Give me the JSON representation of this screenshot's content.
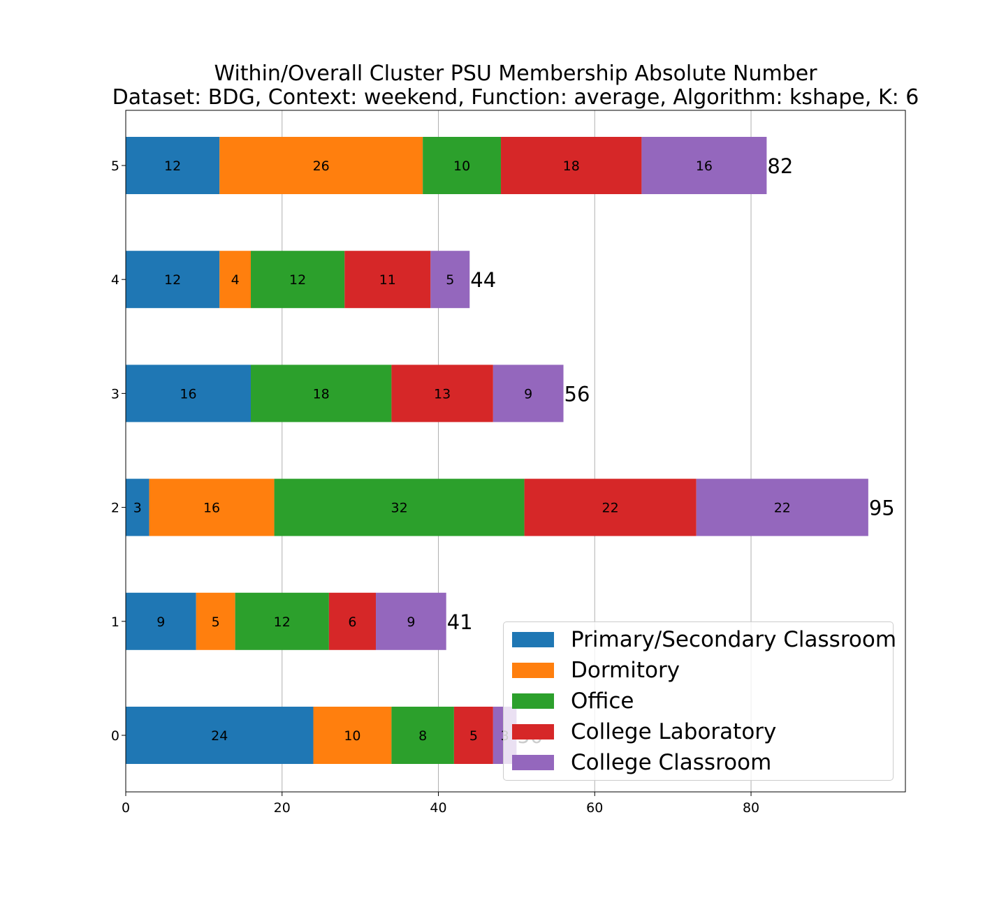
{
  "chart_data": {
    "type": "bar",
    "orientation": "horizontal",
    "stacked": true,
    "title": "Within/Overall Cluster PSU Membership Absolute Number",
    "subtitle": "Dataset: BDG, Context: weekend, Function: average, Algorithm: kshape, K: 6",
    "xlabel": "",
    "ylabel": "",
    "xlim": [
      0,
      100
    ],
    "x_ticks": [
      "0",
      "20",
      "40",
      "60",
      "80"
    ],
    "grid": "vertical",
    "legend_position": "lower-right",
    "categories": [
      "0",
      "1",
      "2",
      "3",
      "4",
      "5"
    ],
    "series": [
      {
        "name": "Primary/Secondary Classroom",
        "color": "#1f77b4",
        "values": [
          24,
          9,
          3,
          16,
          12,
          12
        ]
      },
      {
        "name": "Dormitory",
        "color": "#ff7f0e",
        "values": [
          10,
          5,
          16,
          0,
          4,
          26
        ]
      },
      {
        "name": "Office",
        "color": "#2ca02c",
        "values": [
          8,
          12,
          32,
          18,
          12,
          10
        ]
      },
      {
        "name": "College Laboratory",
        "color": "#d62728",
        "values": [
          5,
          6,
          22,
          13,
          11,
          18
        ]
      },
      {
        "name": "College Classroom",
        "color": "#9467bd",
        "values": [
          3,
          9,
          22,
          9,
          5,
          16
        ]
      }
    ],
    "totals": [
      "50",
      "41",
      "95",
      "56",
      "44",
      "82"
    ]
  }
}
